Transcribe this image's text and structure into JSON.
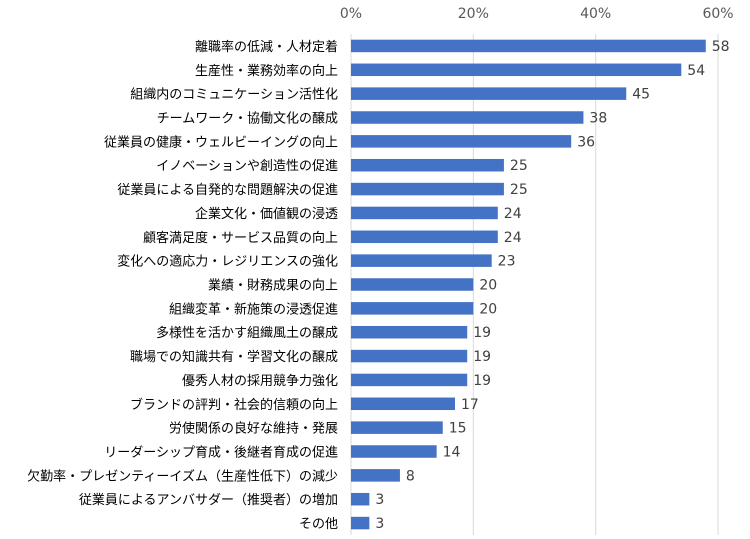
{
  "chart_data": {
    "type": "bar",
    "orientation": "horizontal",
    "title": "",
    "xlabel": "",
    "ylabel": "",
    "xlim": [
      0,
      60
    ],
    "ticks": [
      "0%",
      "20%",
      "40%",
      "60%"
    ],
    "grid": true,
    "bar_color": "#4472C4",
    "categories": [
      "離職率の低減・人材定着",
      "生産性・業務効率の向上",
      "組織内のコミュニケーション活性化",
      "チームワーク・協働文化の醸成",
      "従業員の健康・ウェルビーイングの向上",
      "イノベーションや創造性の促進",
      "従業員による自発的な問題解決の促進",
      "企業文化・価値観の浸透",
      "顧客満足度・サービス品質の向上",
      "変化への適応力・レジリエンスの強化",
      "業績・財務成果の向上",
      "組織変革・新施策の浸透促進",
      "多様性を活かす組織風土の醸成",
      "職場での知識共有・学習文化の醸成",
      "優秀人材の採用競争力強化",
      "ブランドの評判・社会的信頼の向上",
      "労使関係の良好な維持・発展",
      "リーダーシップ育成・後継者育成の促進",
      "欠勤率・プレゼンティーイズム（生産性低下）の減少",
      "従業員によるアンバサダー（推奨者）の増加",
      "その他"
    ],
    "values": [
      58,
      54,
      45,
      38,
      36,
      25,
      25,
      24,
      24,
      23,
      20,
      20,
      19,
      19,
      19,
      17,
      15,
      14,
      8,
      3,
      3
    ],
    "value_labels": [
      "58",
      "54",
      "45",
      "38",
      "36",
      "25",
      "25",
      "24",
      "24",
      "23",
      "20",
      "20",
      "19",
      "19",
      "19",
      "17",
      "15",
      "14",
      "8",
      "3",
      "3"
    ]
  }
}
